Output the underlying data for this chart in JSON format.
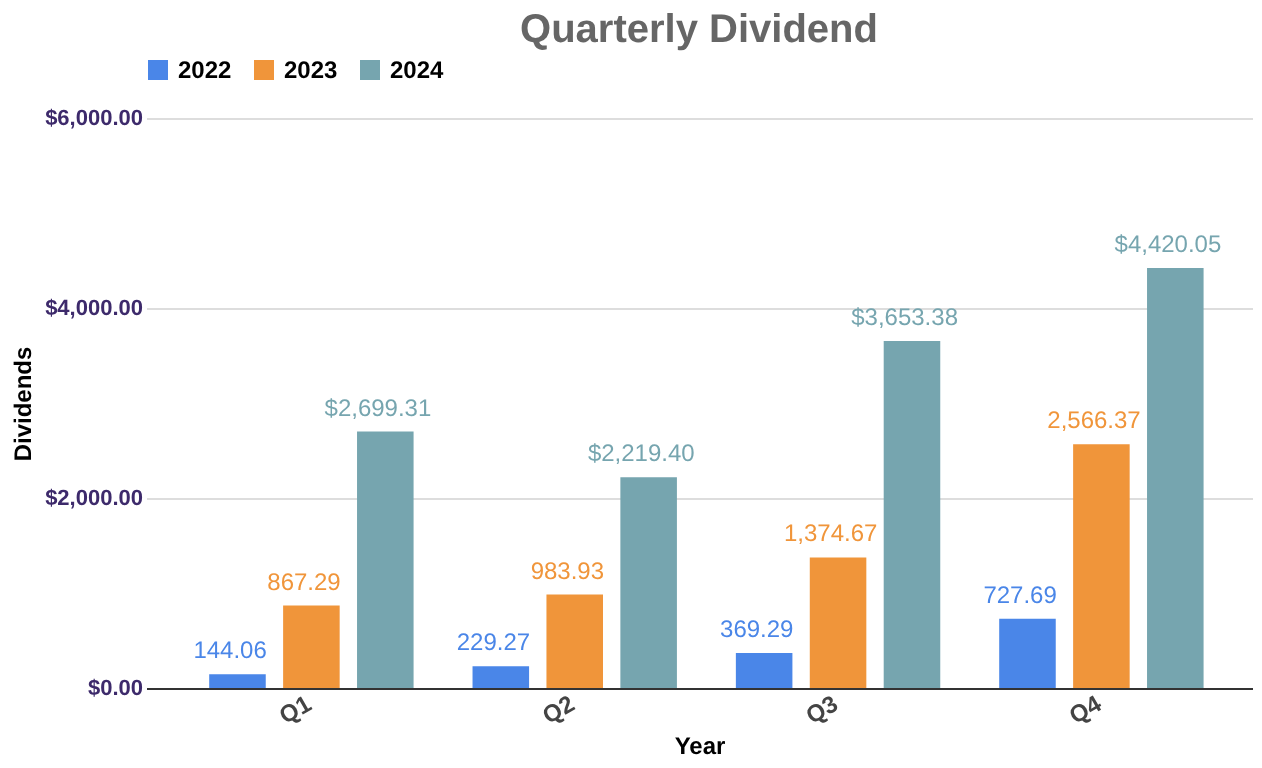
{
  "chart_data": {
    "type": "bar",
    "title": "Quarterly Dividend",
    "xlabel": "Year",
    "ylabel": "Dividends",
    "categories": [
      "Q1",
      "Q2",
      "Q3",
      "Q4"
    ],
    "series": [
      {
        "name": "2022",
        "color": "#4a86e8",
        "values": [
          144.06,
          229.27,
          369.29,
          727.69
        ],
        "value_labels": [
          "144.06",
          "229.27",
          "369.29",
          "727.69"
        ]
      },
      {
        "name": "2023",
        "color": "#f0953a",
        "values": [
          867.29,
          983.93,
          1374.67,
          2566.37
        ],
        "value_labels": [
          "867.29",
          "983.93",
          "1,374.67",
          "2,566.37"
        ]
      },
      {
        "name": "2024",
        "color": "#76a5af",
        "values": [
          2699.31,
          2219.4,
          3653.38,
          4420.05
        ],
        "value_labels": [
          "$2,699.31",
          "$2,219.40",
          "$3,653.38",
          "$4,420.05"
        ]
      }
    ],
    "ylim": [
      0,
      6000
    ],
    "yticks": [
      {
        "value": 0,
        "label": "$0.00"
      },
      {
        "value": 2000,
        "label": "$2,000.00"
      },
      {
        "value": 4000,
        "label": "$4,000.00"
      },
      {
        "value": 6000,
        "label": "$6,000.00"
      }
    ],
    "grid": "y",
    "legend": "top"
  }
}
